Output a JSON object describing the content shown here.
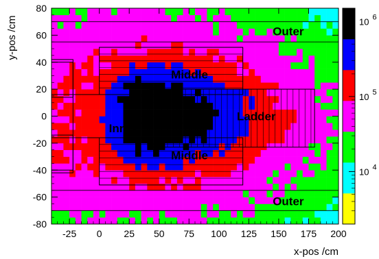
{
  "chart_data": {
    "type": "heatmap",
    "title": "",
    "xlabel": "x-pos /cm",
    "ylabel": "y-pos /cm",
    "xlim": [
      -40,
      200
    ],
    "ylim": [
      -80,
      80
    ],
    "x_ticks": [
      -25,
      0,
      25,
      50,
      75,
      100,
      125,
      150,
      175,
      200
    ],
    "y_ticks": [
      -80,
      -60,
      -40,
      -20,
      0,
      20,
      40,
      60,
      80
    ],
    "bin_size_cm": 5,
    "colorbar": {
      "scale": "log",
      "range": [
        2000,
        1500000
      ],
      "ticks": [
        {
          "value": 10000,
          "base": "10",
          "exp": "4"
        },
        {
          "value": 100000,
          "base": "10",
          "exp": "5"
        },
        {
          "value": 1000000,
          "base": "10",
          "exp": "6"
        }
      ],
      "palette": [
        "#ffff00",
        "#ffff00",
        "#00ffff",
        "#00ffff",
        "#00ff00",
        "#00ff00",
        "#ff00ff",
        "#ff00ff",
        "#ff0000",
        "#ff0000",
        "#0000ff",
        "#0000ff",
        "#000000",
        "#000000"
      ]
    },
    "hotspot": {
      "x": 37,
      "y": 0,
      "peak": 1400000
    },
    "region_labels": [
      {
        "text": "Outer",
        "x": 145,
        "y": 63
      },
      {
        "text": "Middle",
        "x": 60,
        "y": 31
      },
      {
        "text": "Ladder",
        "x": 115,
        "y": 0
      },
      {
        "text": "Inner",
        "x": 8,
        "y": -9
      },
      {
        "text": "Middle",
        "x": 60,
        "y": -29
      },
      {
        "text": "Outer",
        "x": 145,
        "y": -63
      }
    ],
    "detector_boxes": [
      {
        "name": "middle-top",
        "x0": 0,
        "x1": 120,
        "y0": 16,
        "y1": 51,
        "strip_pitch": 5
      },
      {
        "name": "middle-bottom",
        "x0": 0,
        "x1": 120,
        "y0": -51,
        "y1": -16,
        "strip_pitch": 5
      },
      {
        "name": "ladder",
        "x0": 42,
        "x1": 180,
        "y0": -23,
        "y1": 20,
        "strip_pitch": 5
      },
      {
        "name": "inner",
        "x0": -40,
        "x1": -22,
        "y0": -40,
        "y1": 40
      },
      {
        "name": "outer-band-top",
        "x0": -40,
        "x1": 200,
        "y0": 55,
        "y1": 70
      },
      {
        "name": "outer-band-bottom",
        "x0": -40,
        "x1": 200,
        "y0": -70,
        "y1": -55
      }
    ]
  }
}
